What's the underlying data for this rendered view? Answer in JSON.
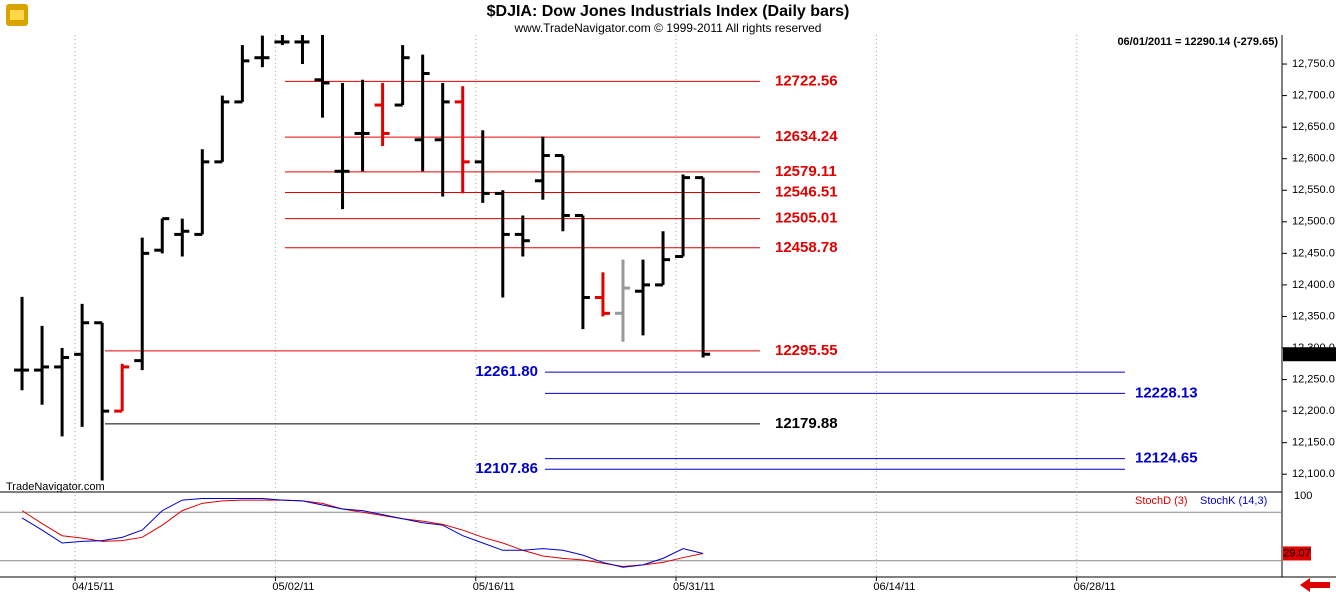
{
  "chart_data": [
    {
      "type": "ohlc",
      "title": "$DJIA:  Dow Jones Industrials Index  (Daily bars)",
      "subtitle": "www.TradeNavigator.com © 1999-2011 All rights reserved",
      "status": "06/01/2011 = 12290.14 (-279.65)",
      "watermark": "TradeNavigator.com",
      "x": [
        0,
        1,
        2,
        3,
        4,
        5,
        6,
        7,
        8,
        9,
        10,
        11,
        12,
        13,
        14,
        15,
        16,
        17,
        18,
        19,
        20,
        21,
        22,
        23,
        24,
        25,
        26,
        27,
        28,
        29,
        30,
        31,
        32,
        33,
        34
      ],
      "open": [
        12265,
        12265,
        12270,
        12290,
        12340,
        12200,
        12280,
        12455,
        12480,
        12480,
        12595,
        12690,
        12760,
        12785,
        12785,
        12725,
        12580,
        12640,
        12685,
        12685,
        12630,
        12630,
        12690,
        12595,
        12545,
        12480,
        12565,
        12605,
        12510,
        12380,
        12355,
        12390,
        12400,
        12445,
        12570
      ],
      "high": [
        12381,
        12335,
        12300,
        12370,
        12340,
        12275,
        12475,
        12505,
        12505,
        12615,
        12700,
        12780,
        12795,
        12796,
        12796,
        12796,
        12720,
        12725,
        12720,
        12780,
        12765,
        12720,
        12715,
        12645,
        12550,
        12510,
        12635,
        12605,
        12510,
        12420,
        12440,
        12440,
        12485,
        12575,
        12570
      ],
      "low": [
        12233,
        12210,
        12160,
        12175,
        12090,
        12200,
        12265,
        12450,
        12445,
        12480,
        12595,
        12690,
        12745,
        12780,
        12750,
        12665,
        12520,
        12580,
        12620,
        12685,
        12580,
        12540,
        12545,
        12530,
        12380,
        12445,
        12535,
        12485,
        12330,
        12350,
        12310,
        12320,
        12400,
        12445,
        12285
      ],
      "close": [
        12265,
        12270,
        12285,
        12340,
        12200,
        12270,
        12450,
        12505,
        12485,
        12595,
        12690,
        12755,
        12760,
        12785,
        12785,
        12720,
        12580,
        12640,
        12640,
        12760,
        12735,
        12690,
        12595,
        12545,
        12480,
        12470,
        12605,
        12510,
        12380,
        12355,
        12395,
        12400,
        12440,
        12570,
        12290.14
      ],
      "colors": [
        "#000",
        "#000",
        "#000",
        "#000",
        "#000",
        "#e00000",
        "#000",
        "#000",
        "#000",
        "#000",
        "#000",
        "#000",
        "#000",
        "#000",
        "#000",
        "#000",
        "#000",
        "#000",
        "#e00000",
        "#000",
        "#000",
        "#000",
        "#e00000",
        "#000",
        "#000",
        "#000",
        "#000",
        "#000",
        "#000",
        "#e00000",
        "#999999",
        "#000",
        "#000",
        "#000",
        "#000"
      ],
      "levels": [
        {
          "value": 12722.56,
          "color": "#e00000"
        },
        {
          "value": 12634.24,
          "color": "#e00000"
        },
        {
          "value": 12579.11,
          "color": "#e00000"
        },
        {
          "value": 12546.51,
          "color": "#e00000"
        },
        {
          "value": 12505.01,
          "color": "#e00000"
        },
        {
          "value": 12458.78,
          "color": "#e00000"
        },
        {
          "value": 12295.55,
          "color": "#e00000"
        },
        {
          "value": 12261.8,
          "label": "12261.80",
          "color": "#0000cc"
        },
        {
          "value": 12228.13,
          "color": "#0000cc"
        },
        {
          "value": 12179.88,
          "color": "#000000"
        },
        {
          "value": 12124.65,
          "color": "#0000cc"
        },
        {
          "value": 12107.86,
          "color": "#0000cc"
        }
      ],
      "xlim": [
        -1.1,
        62.9
      ],
      "xticks": [
        {
          "value": 2.65,
          "label": "04/15/11"
        },
        {
          "value": 12.65,
          "label": "05/02/11"
        },
        {
          "value": 22.65,
          "label": "05/16/11"
        },
        {
          "value": 32.65,
          "label": "05/31/11"
        },
        {
          "value": 42.65,
          "label": "06/14/11"
        },
        {
          "value": 52.65,
          "label": "06/28/11"
        }
      ],
      "ylim": [
        12075,
        12796
      ],
      "yticks": [
        {
          "value": 12100,
          "label": "12,100.0"
        },
        {
          "value": 12150,
          "label": "12,150.0"
        },
        {
          "value": 12200,
          "label": "12,200.0"
        },
        {
          "value": 12250,
          "label": "12,250.0"
        },
        {
          "value": 12300,
          "label": "12,300.0"
        },
        {
          "value": 12350,
          "label": "12,350.0"
        },
        {
          "value": 12400,
          "label": "12,400.0"
        },
        {
          "value": 12450,
          "label": "12,450.0"
        },
        {
          "value": 12500,
          "label": "12,500.0"
        },
        {
          "value": 12550,
          "label": "12,550.0"
        },
        {
          "value": 12600,
          "label": "12,600.0"
        },
        {
          "value": 12650,
          "label": "12,650.0"
        },
        {
          "value": 12700,
          "label": "12,700.0"
        },
        {
          "value": 12750,
          "label": "12,750.0"
        }
      ]
    },
    {
      "type": "line",
      "series": [
        {
          "name": "StochD (3)",
          "color": "#e00000",
          "values": [
            82,
            66,
            51,
            48,
            44,
            45,
            49,
            64,
            82,
            91,
            94,
            95,
            95,
            95,
            94,
            91,
            84,
            80,
            76,
            72,
            69,
            65,
            58,
            49,
            42,
            33,
            26,
            23,
            21,
            17,
            13,
            15,
            18,
            24,
            29.07
          ]
        },
        {
          "name": "StochK (14,3)",
          "color": "#0000cc",
          "values": [
            73,
            58,
            42,
            44,
            45,
            49,
            58,
            82,
            95,
            97,
            97,
            97,
            97,
            95,
            94,
            89,
            84,
            82,
            77,
            72,
            67,
            64,
            51,
            42,
            33,
            33,
            35,
            33,
            27,
            18,
            12,
            15,
            23,
            35,
            29
          ]
        }
      ],
      "ref_lines": [
        80,
        20
      ],
      "ylim": [
        0,
        105
      ],
      "yticks": [
        100
      ]
    }
  ]
}
